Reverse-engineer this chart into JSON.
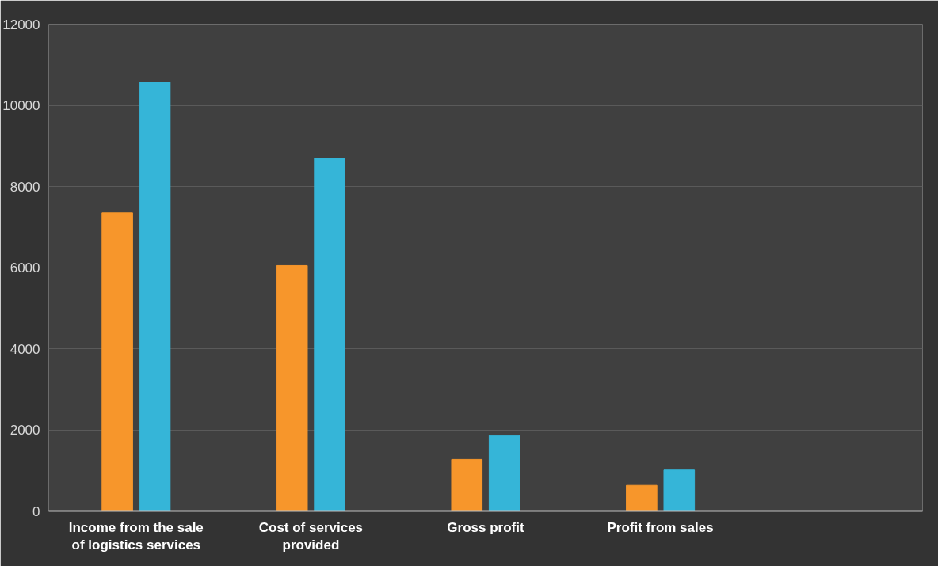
{
  "chart_data": {
    "type": "bar",
    "categories": [
      "Income from the sale of logistics services",
      "Cost of services provided",
      "Gross profit",
      "Profit from sales",
      null
    ],
    "series": [
      {
        "color": "#f7962b",
        "values": [
          7350,
          6050,
          1270,
          630,
          null
        ]
      },
      {
        "color": "#35b5d8",
        "values": [
          10570,
          8700,
          1860,
          1010,
          null
        ]
      }
    ],
    "ylim": [
      0,
      12000
    ],
    "yticks": [
      0,
      2000,
      4000,
      6000,
      8000,
      10000,
      12000
    ],
    "grid": "y"
  }
}
